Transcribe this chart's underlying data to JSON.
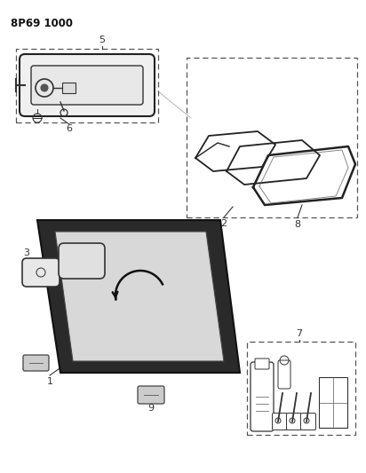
{
  "title": "8P69 1000",
  "bg_color": "#ffffff",
  "line_color": "#333333",
  "fig_width": 4.12,
  "fig_height": 5.33,
  "dpi": 100
}
